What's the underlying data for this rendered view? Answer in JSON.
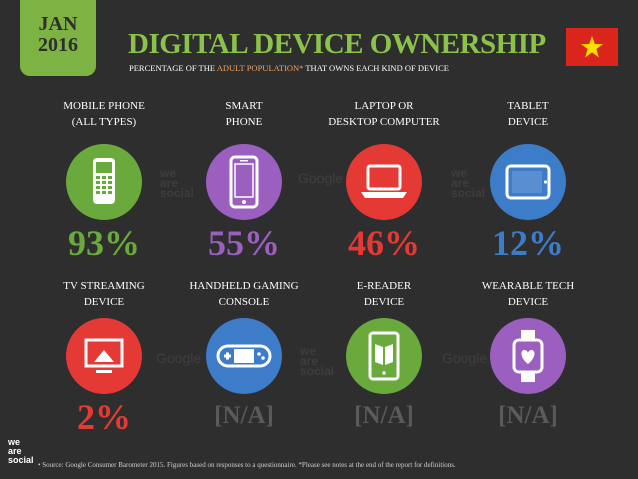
{
  "header": {
    "date_month": "JAN",
    "date_year": "2016",
    "title": "DIGITAL DEVICE OWNERSHIP",
    "subtitle_pre": "PERCENTAGE OF THE ",
    "subtitle_highlight": "ADULT POPULATION*",
    "subtitle_post": " THAT OWNS EACH KIND OF DEVICE",
    "flag": "vietnam-flag",
    "accent_color": "#7cb342"
  },
  "devices": [
    {
      "label_line1": "MOBILE PHONE",
      "label_line2": "(ALL TYPES)",
      "value": "93%",
      "color": "#6aaa3c",
      "icon": "mobile-phone-icon",
      "available": true
    },
    {
      "label_line1": "SMART",
      "label_line2": "PHONE",
      "value": "55%",
      "color": "#9b5fc0",
      "icon": "smartphone-icon",
      "available": true
    },
    {
      "label_line1": "LAPTOP OR",
      "label_line2": "DESKTOP COMPUTER",
      "value": "46%",
      "color": "#e53935",
      "icon": "laptop-icon",
      "available": true
    },
    {
      "label_line1": "TABLET",
      "label_line2": "DEVICE",
      "value": "12%",
      "color": "#3d7cc9",
      "icon": "tablet-icon",
      "available": true
    },
    {
      "label_line1": "TV STREAMING",
      "label_line2": "DEVICE",
      "value": "2%",
      "color": "#e53935",
      "icon": "tv-streaming-icon",
      "available": true
    },
    {
      "label_line1": "HANDHELD GAMING",
      "label_line2": "CONSOLE",
      "value": "[N/A]",
      "color": "#3d7cc9",
      "icon": "gaming-console-icon",
      "available": false
    },
    {
      "label_line1": "E-READER",
      "label_line2": "DEVICE",
      "value": "[N/A]",
      "color": "#6aaa3c",
      "icon": "ereader-icon",
      "available": false
    },
    {
      "label_line1": "WEARABLE TECH",
      "label_line2": "DEVICE",
      "value": "[N/A]",
      "color": "#9b5fc0",
      "icon": "wearable-icon",
      "available": false
    }
  ],
  "watermarks": {
    "social_line1": "we",
    "social_line2": "are",
    "social_line3": "social",
    "google": "Google"
  },
  "footer": {
    "logo_line1": "we",
    "logo_line2": "are",
    "logo_line3": "social",
    "note": "•  Source: Google Consumer Barometer 2015. Figures based on responses to a questionnaire. *Please see notes at the end of the report for definitions."
  }
}
